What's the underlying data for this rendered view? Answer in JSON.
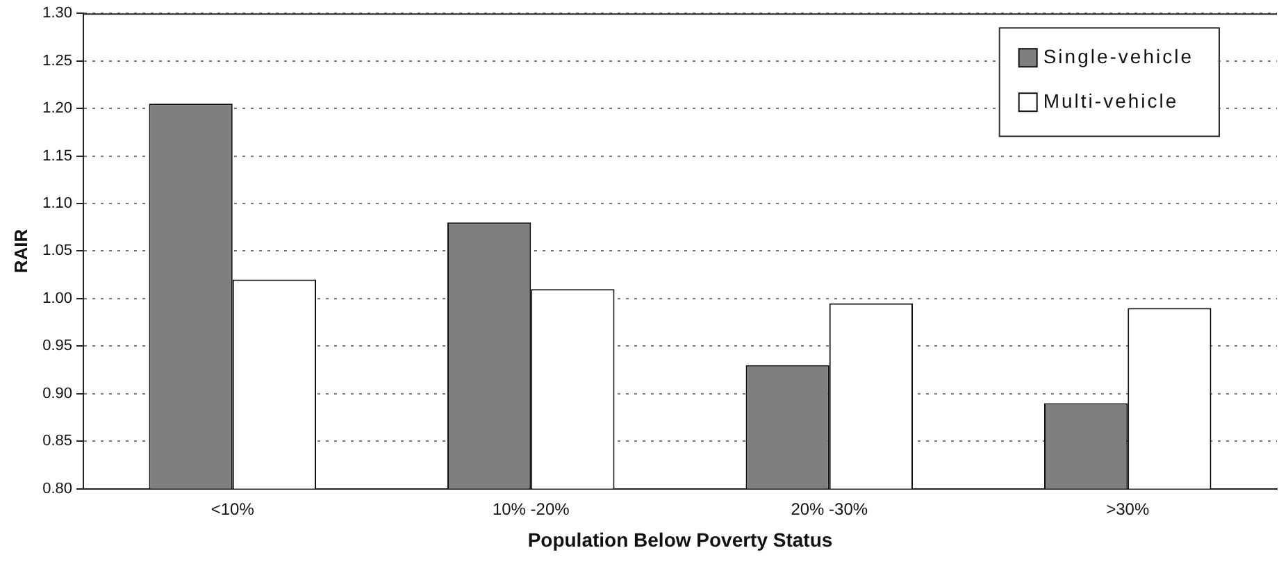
{
  "chart_data": {
    "type": "bar",
    "xlabel": "Population Below Poverty Status",
    "ylabel": "RAIR",
    "categories": [
      "<10%",
      "10% -20%",
      "20% -30%",
      ">30%"
    ],
    "series": [
      {
        "name": "Single-vehicle",
        "color": "#7f7f7f",
        "values": [
          1.205,
          1.08,
          0.93,
          0.89
        ]
      },
      {
        "name": "Multi-vehicle",
        "color": "#ffffff",
        "values": [
          1.02,
          1.01,
          0.995,
          0.99
        ]
      }
    ],
    "ylim": [
      0.8,
      1.3
    ],
    "yticks": [
      {
        "value": 0.8,
        "label": "0.80"
      },
      {
        "value": 0.85,
        "label": "0.85"
      },
      {
        "value": 0.9,
        "label": "0.90"
      },
      {
        "value": 0.95,
        "label": "0.95"
      },
      {
        "value": 1.0,
        "label": "1.00"
      },
      {
        "value": 1.05,
        "label": "1.05"
      },
      {
        "value": 1.1,
        "label": "1.10"
      },
      {
        "value": 1.15,
        "label": "1.15"
      },
      {
        "value": 1.2,
        "label": "1.20"
      },
      {
        "value": 1.25,
        "label": "1.25"
      },
      {
        "value": 1.3,
        "label": "1.30"
      }
    ],
    "grid": "y",
    "legend": "top right"
  }
}
